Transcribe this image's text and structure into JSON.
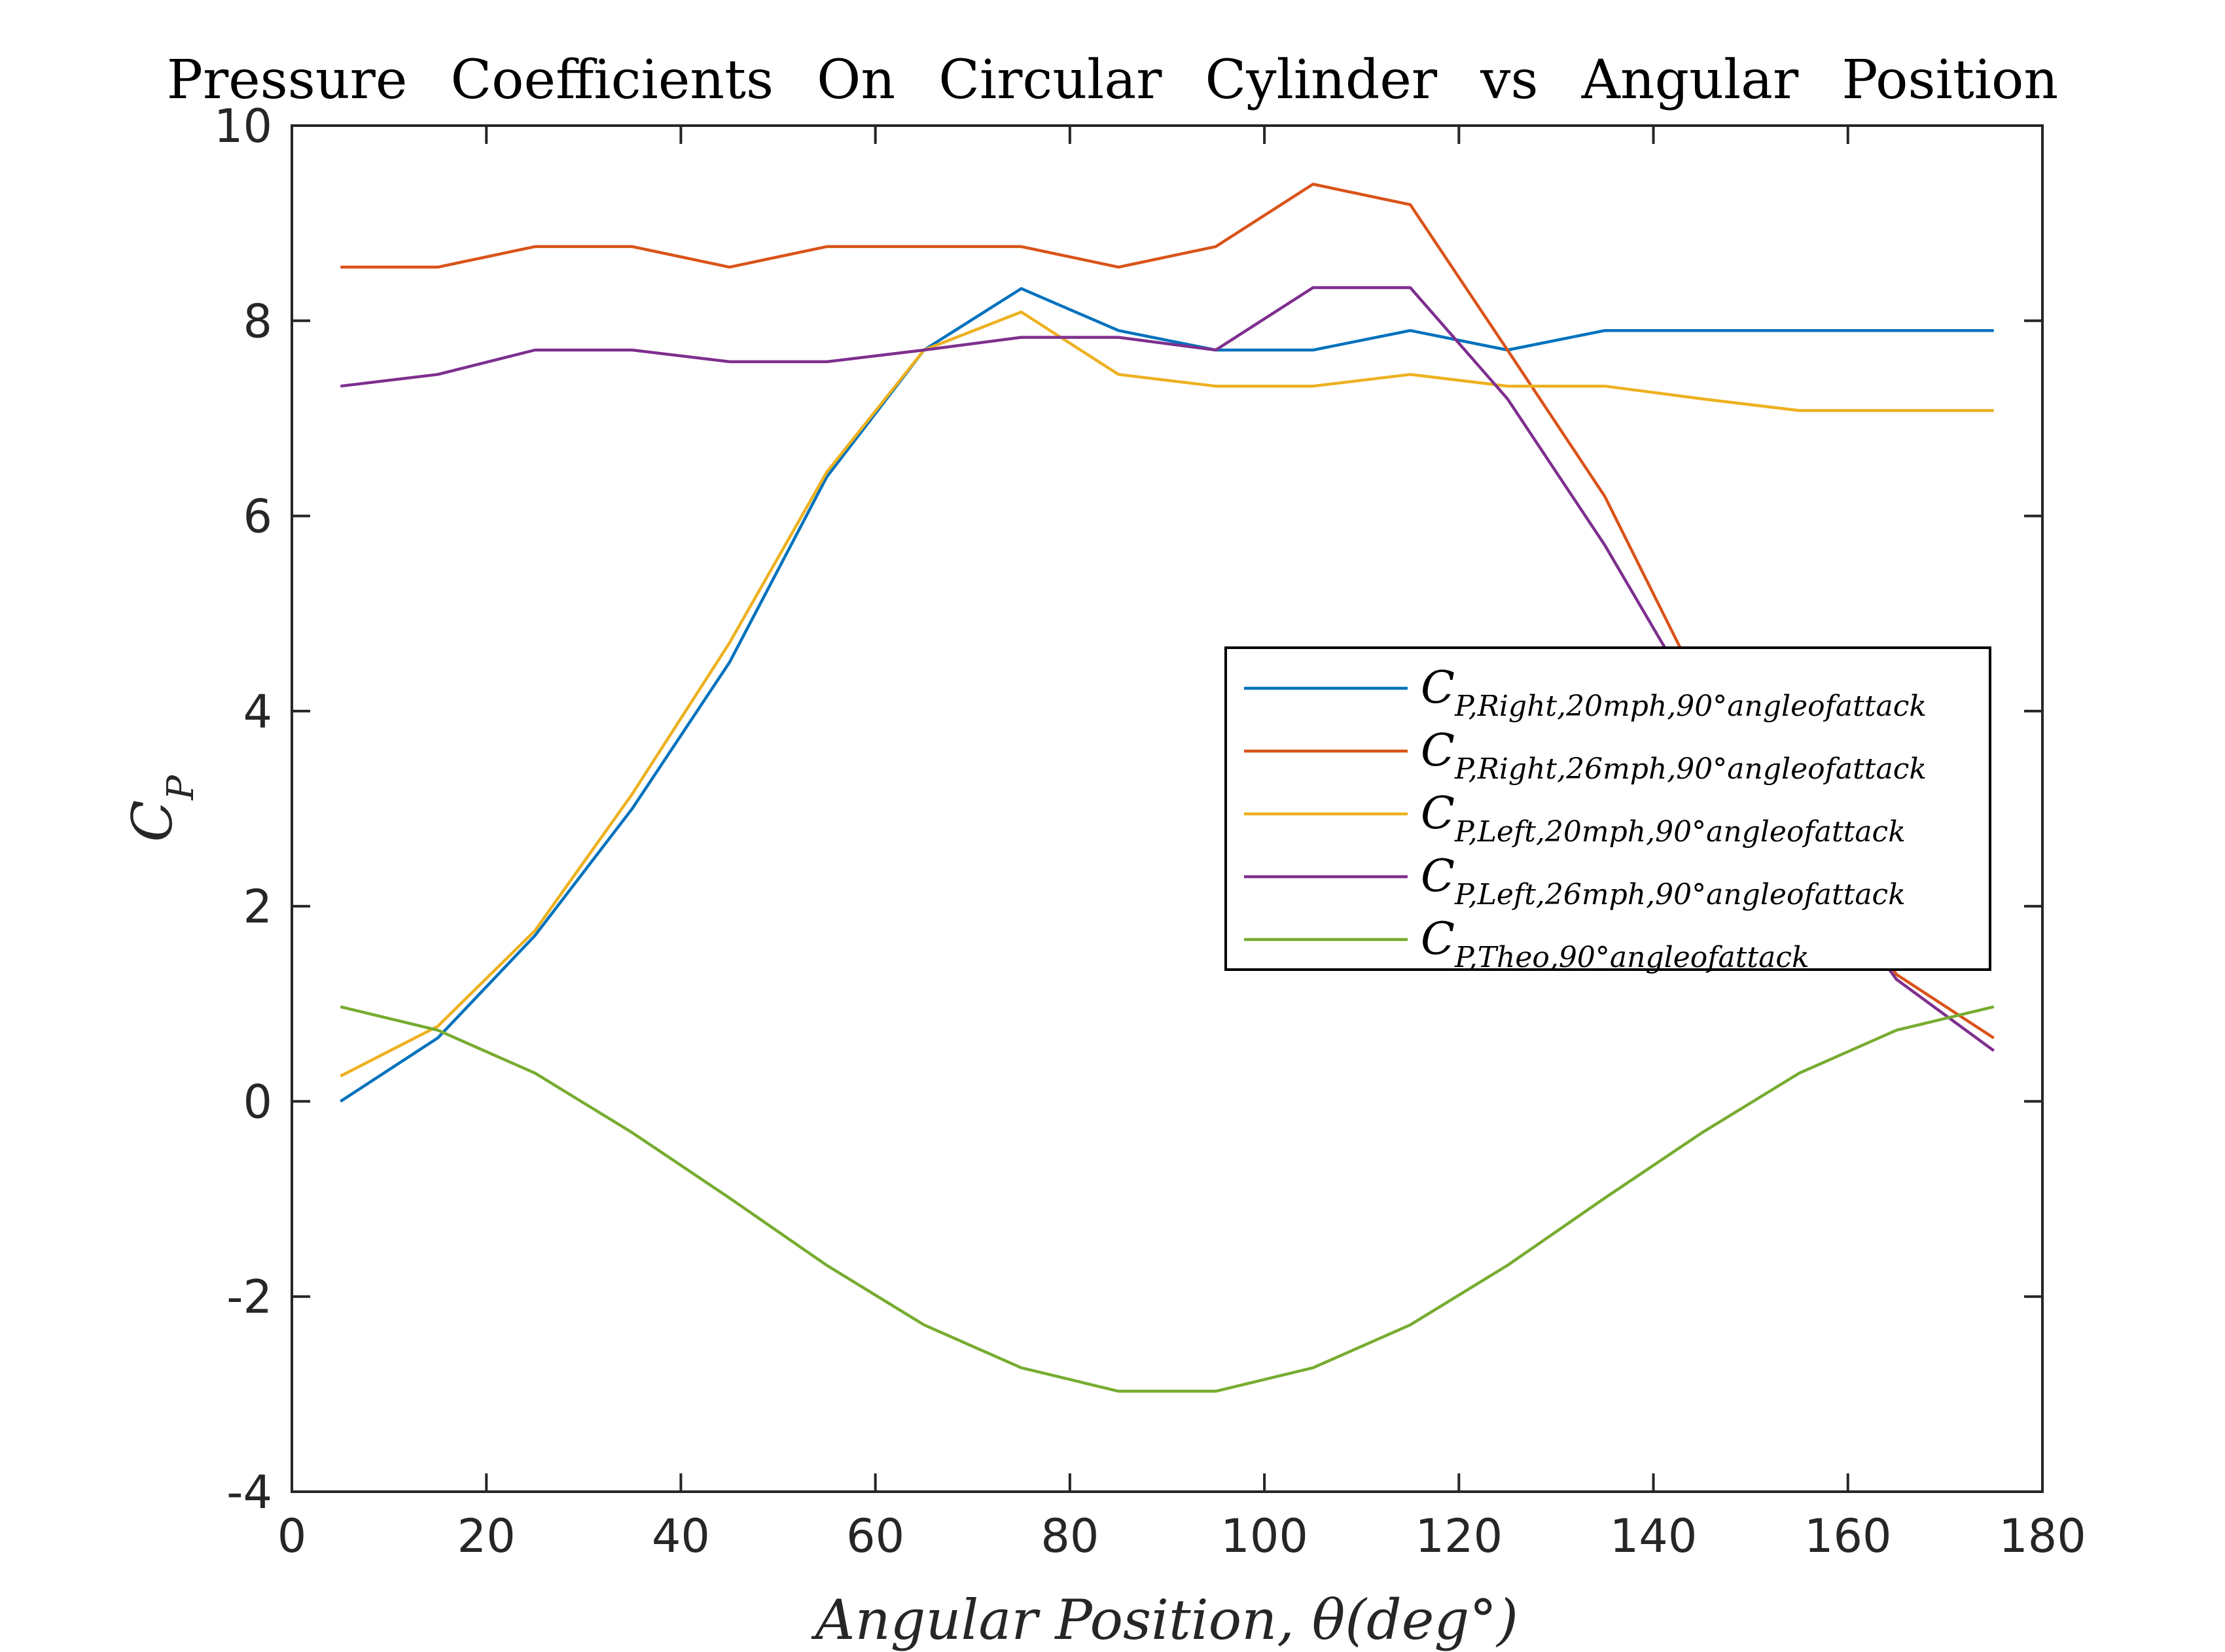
{
  "chart_data": {
    "type": "line",
    "title": "Pressure Coefficients On Circular Cylinder vs Angular Position",
    "xlabel": "Angular Position, θ(deg°)",
    "ylabel": "C_P",
    "xlim": [
      0,
      180
    ],
    "ylim": [
      -4,
      10
    ],
    "xticks": [
      0,
      20,
      40,
      60,
      80,
      100,
      120,
      140,
      160,
      180
    ],
    "yticks": [
      -4,
      -2,
      0,
      2,
      4,
      6,
      8,
      10
    ],
    "grid": false,
    "legend_position": "center-right",
    "x": [
      5,
      15,
      25,
      35,
      45,
      55,
      65,
      75,
      85,
      95,
      105,
      115,
      125,
      135,
      145,
      155,
      165,
      175
    ],
    "series": [
      {
        "name": "C_{P,Right,20mph,90°angleofattack}",
        "label_main": "C",
        "label_sub": "P,Right,20mph,90°angleofattack",
        "color": "#0072BD",
        "values": [
          0.0,
          0.65,
          1.7,
          3.0,
          4.5,
          6.4,
          7.7,
          8.33,
          7.9,
          7.7,
          7.7,
          7.9,
          7.7,
          7.9,
          7.9,
          7.9,
          7.9,
          7.9
        ]
      },
      {
        "name": "C_{P,Right,26mph,90°angleofattack}",
        "label_main": "C",
        "label_sub": "P,Right,26mph,90°angleofattack",
        "color": "#D95319",
        "values": [
          8.55,
          8.55,
          8.76,
          8.76,
          8.55,
          8.76,
          8.76,
          8.76,
          8.55,
          8.76,
          9.4,
          9.19,
          7.7,
          6.2,
          4.2,
          2.8,
          1.3,
          0.65
        ]
      },
      {
        "name": "C_{P,Left,20mph,90°angleofattack}",
        "label_main": "C",
        "label_sub": "P,Left,20mph,90°angleofattack",
        "color": "#EDB120",
        "values": [
          0.26,
          0.77,
          1.75,
          3.15,
          4.7,
          6.45,
          7.7,
          8.09,
          7.45,
          7.33,
          7.33,
          7.45,
          7.33,
          7.33,
          7.2,
          7.08,
          7.08,
          7.08
        ]
      },
      {
        "name": "C_{P,Left,26mph,90°angleofattack}",
        "label_main": "C",
        "label_sub": "P,Left,26mph,90°angleofattack",
        "color": "#7E2F8E",
        "values": [
          7.33,
          7.45,
          7.7,
          7.7,
          7.58,
          7.58,
          7.7,
          7.83,
          7.83,
          7.7,
          8.34,
          8.34,
          7.2,
          5.7,
          4.0,
          2.6,
          1.25,
          0.52
        ]
      },
      {
        "name": "C_{P,Theo,90°angleofattack}",
        "label_main": "C",
        "label_sub": "P,Theo,90°angleofattack",
        "color": "#77AC30",
        "values": [
          0.97,
          0.73,
          0.29,
          -0.32,
          -0.99,
          -1.68,
          -2.29,
          -2.73,
          -2.97,
          -2.97,
          -2.73,
          -2.29,
          -1.68,
          -0.99,
          -0.32,
          0.29,
          0.73,
          0.97
        ]
      }
    ]
  }
}
